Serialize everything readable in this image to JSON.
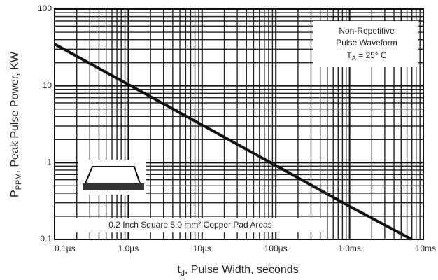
{
  "chart_data": {
    "type": "line",
    "x_label": {
      "symbol": "t",
      "subscript": "d",
      "text": ", Pulse Width, seconds"
    },
    "y_label": {
      "symbol": "P",
      "subscript": "PPM",
      "text": ", Peak Pulse Power, KW"
    },
    "annotation": {
      "lines": [
        "Non-Repetitive",
        "Pulse Waveform"
      ],
      "symbol": "T",
      "subscript": "A",
      "text": " = 25° C"
    },
    "pad_note": "0.2 Inch Square 5.0 mm² Copper Pad Areas",
    "x": [
      1e-07,
      1e-06,
      1e-05,
      0.0001,
      0.001,
      0.007
    ],
    "series": [
      {
        "color": "#111111",
        "values": [
          35,
          10.4,
          3.1,
          0.92,
          0.27,
          0.1
        ]
      }
    ],
    "x_log": true,
    "y_log": true,
    "grid": true,
    "xlim": [
      1e-07,
      0.01
    ],
    "xticks": [
      {
        "value": 1e-07,
        "label": "0.1µs"
      },
      {
        "value": 1e-06,
        "label": "1.0µs"
      },
      {
        "value": 1e-05,
        "label": "10µs"
      },
      {
        "value": 0.0001,
        "label": "100µs"
      },
      {
        "value": 0.001,
        "label": "1.0ms"
      },
      {
        "value": 0.01,
        "label": "10ms"
      }
    ],
    "ylim": [
      0.1,
      100
    ],
    "yticks": [
      0.1,
      1,
      10,
      100
    ]
  }
}
